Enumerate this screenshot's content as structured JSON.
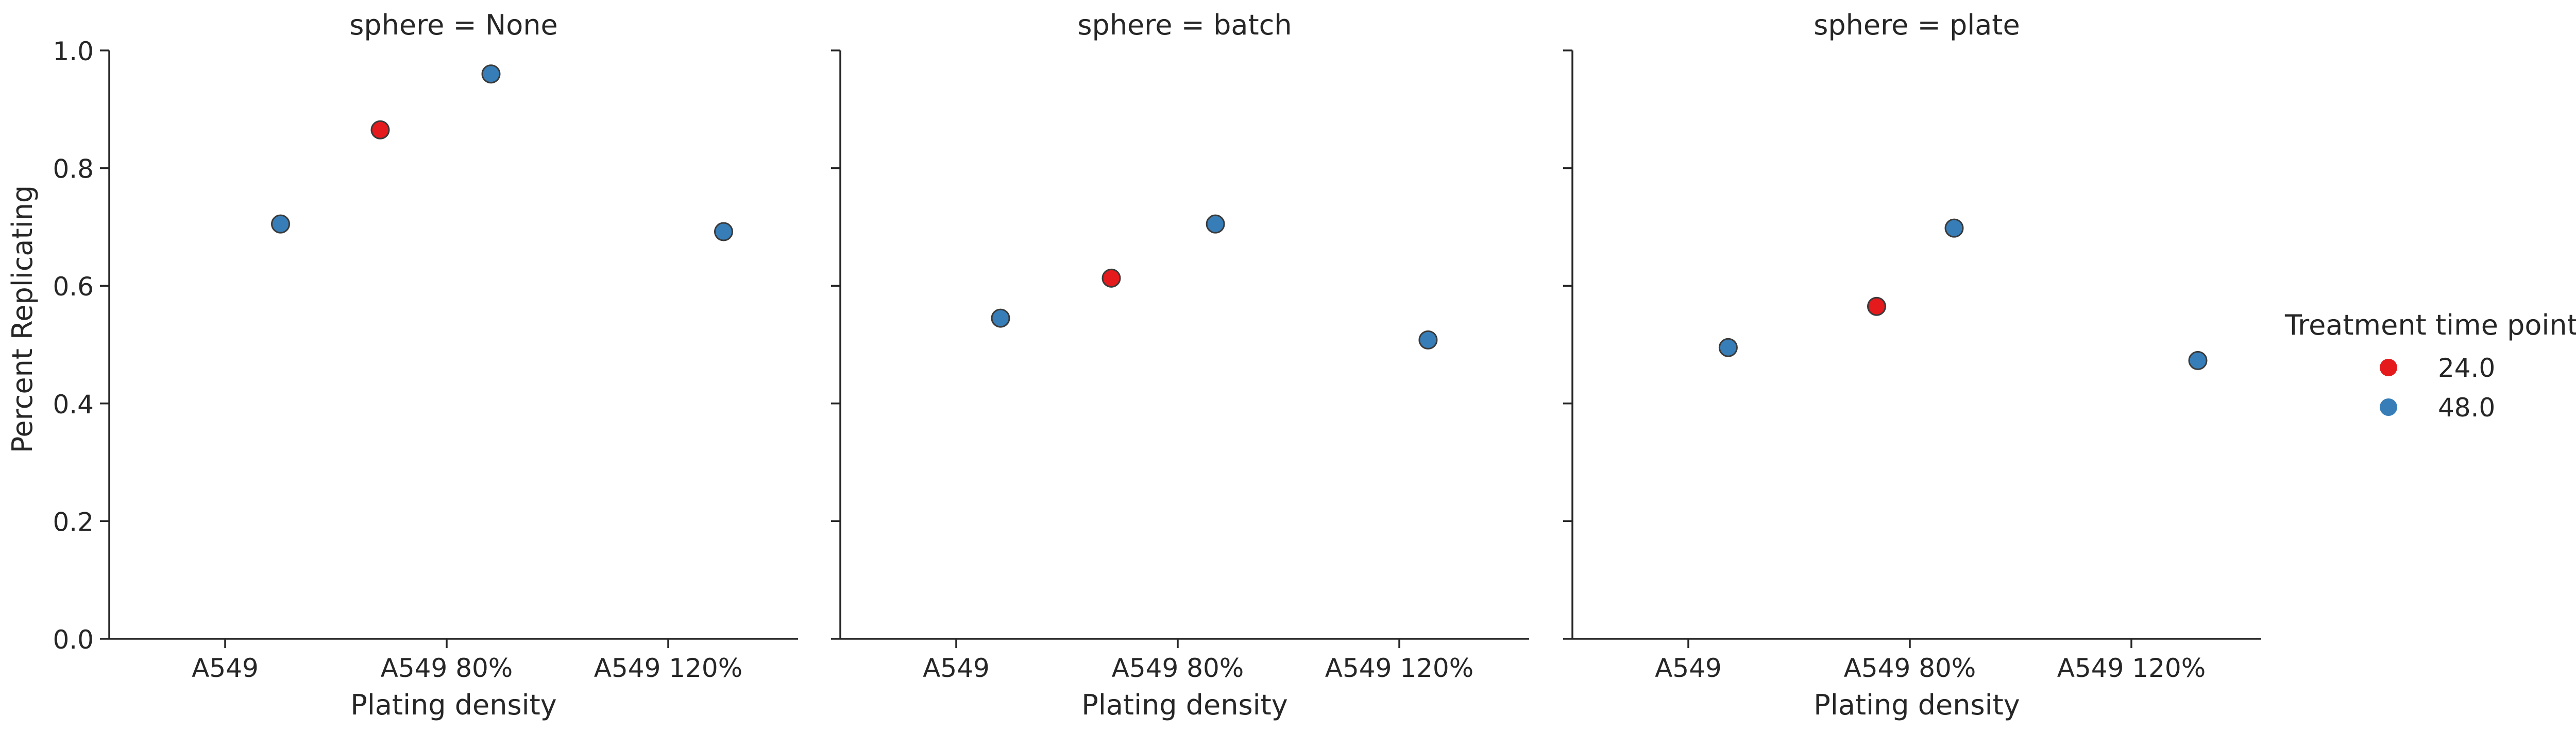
{
  "chart_data": {
    "type": "scatter",
    "ylabel": "Percent Replicating",
    "xlabel": "Plating density",
    "ylim": [
      0.0,
      1.0
    ],
    "yticks": [
      "0.0",
      "0.2",
      "0.4",
      "0.6",
      "0.8",
      "1.0"
    ],
    "categories": [
      "A549",
      "A549 80%",
      "A549 120%"
    ],
    "legend": {
      "title": "Treatment time point",
      "placement": "right",
      "entries": [
        {
          "label": "24.0",
          "color": "#e41a1c"
        },
        {
          "label": "48.0",
          "color": "#377eb8"
        }
      ]
    },
    "panels": [
      {
        "title": "sphere = None",
        "points": [
          {
            "x": 0.25,
            "y": 0.705,
            "series": "48.0"
          },
          {
            "x": 0.7,
            "y": 0.865,
            "series": "24.0"
          },
          {
            "x": 1.2,
            "y": 0.96,
            "series": "48.0"
          },
          {
            "x": 2.25,
            "y": 0.692,
            "series": "48.0"
          }
        ]
      },
      {
        "title": "sphere = batch",
        "points": [
          {
            "x": 0.2,
            "y": 0.545,
            "series": "48.0"
          },
          {
            "x": 0.7,
            "y": 0.613,
            "series": "24.0"
          },
          {
            "x": 1.17,
            "y": 0.705,
            "series": "48.0"
          },
          {
            "x": 2.13,
            "y": 0.508,
            "series": "48.0"
          }
        ]
      },
      {
        "title": "sphere = plate",
        "points": [
          {
            "x": 0.18,
            "y": 0.495,
            "series": "48.0"
          },
          {
            "x": 0.85,
            "y": 0.565,
            "series": "24.0"
          },
          {
            "x": 1.2,
            "y": 0.698,
            "series": "48.0"
          },
          {
            "x": 2.3,
            "y": 0.473,
            "series": "48.0"
          }
        ]
      }
    ]
  }
}
